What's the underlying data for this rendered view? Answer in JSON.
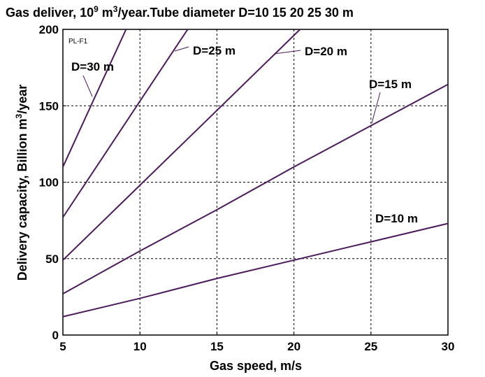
{
  "chart_data": {
    "type": "line",
    "title_parts": [
      "Gas deliver, 10",
      "9",
      " m",
      "3",
      "/year.Tube diameter D=10 15 20 25 30 m"
    ],
    "y_label_parts": [
      "Delivery capacity, Billion m",
      "3",
      "/year"
    ],
    "x_label": "Gas speed, m/s",
    "tag": "PL-F1",
    "xlim": [
      5,
      30
    ],
    "xticks": [
      5,
      10,
      15,
      20,
      25,
      30
    ],
    "ylim": [
      0,
      200
    ],
    "yticks": [
      0,
      50,
      100,
      150,
      200
    ],
    "grid": true,
    "series": [
      {
        "name": "D=10 m",
        "color": "#4b1a5a",
        "x": [
          5,
          10,
          15,
          20,
          25,
          30
        ],
        "values": [
          12,
          24,
          37,
          49,
          61,
          73
        ]
      },
      {
        "name": "D=15 m",
        "color": "#4b1a5a",
        "x": [
          5,
          10,
          15,
          20,
          25,
          30
        ],
        "values": [
          27,
          55,
          82,
          110,
          137,
          164
        ]
      },
      {
        "name": "D=20 m",
        "color": "#4b1a5a",
        "x": [
          5,
          10,
          15,
          20.4
        ],
        "values": [
          49,
          98,
          147,
          200
        ]
      },
      {
        "name": "D=25 m",
        "color": "#4b1a5a",
        "x": [
          5,
          10,
          13.1
        ],
        "values": [
          77,
          153,
          200
        ]
      },
      {
        "name": "D=30 m",
        "color": "#4b1a5a",
        "x": [
          5,
          7,
          9.1
        ],
        "values": [
          110,
          154,
          200
        ]
      }
    ]
  }
}
